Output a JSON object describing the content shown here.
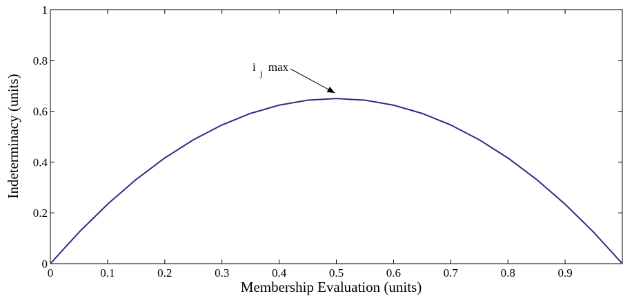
{
  "chart_data": {
    "type": "line",
    "title": "",
    "xlabel": "Membership Evaluation (units)",
    "ylabel": "Indeterminacy (units)",
    "xlim": [
      0,
      1
    ],
    "ylim": [
      0,
      1
    ],
    "x_ticks": [
      "0",
      "0.1",
      "0.2",
      "0.3",
      "0.4",
      "0.5",
      "0.6",
      "0.7",
      "0.8",
      "0.9"
    ],
    "y_ticks": [
      "0",
      "0.2",
      "0.4",
      "0.6",
      "0.8",
      "1"
    ],
    "grid": false,
    "line_color": "#2b2d86",
    "series": [
      {
        "x": [
          0,
          0.05,
          0.1,
          0.15,
          0.2,
          0.25,
          0.3,
          0.35,
          0.4,
          0.45,
          0.5,
          0.55,
          0.6,
          0.65,
          0.7,
          0.75,
          0.8,
          0.85,
          0.9,
          0.95,
          1.0
        ],
        "y": [
          0,
          0.1235,
          0.234,
          0.3315,
          0.416,
          0.4875,
          0.546,
          0.5915,
          0.624,
          0.6435,
          0.65,
          0.6435,
          0.624,
          0.5915,
          0.546,
          0.4875,
          0.416,
          0.3315,
          0.234,
          0.1235,
          0
        ]
      }
    ],
    "annotation": {
      "text_main": "i",
      "text_sub": "j",
      "text_suffix": "max",
      "points_to": [
        0.5,
        0.65
      ]
    }
  }
}
